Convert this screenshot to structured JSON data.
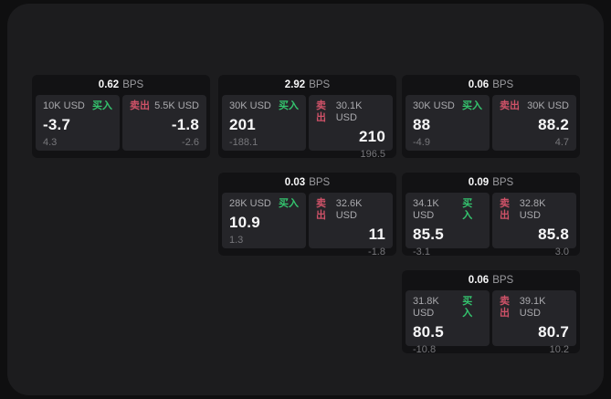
{
  "labels": {
    "bps": "BPS",
    "buy": "买入",
    "sell": "卖出"
  },
  "colors": {
    "background": "#0f0f10",
    "panel": "#1c1c1e",
    "card": "#121214",
    "tile": "#252529",
    "buy_green": "#34c46e",
    "sell_red": "#cf5268",
    "value_white": "#f7f7f8",
    "label_gray": "#a9a9ad",
    "sub_gray": "#77777b"
  },
  "cards": [
    {
      "bps": "0.62",
      "buy": {
        "amount": "10K USD",
        "value": "-3.7",
        "sub": "4.3"
      },
      "sell": {
        "amount": "5.5K USD",
        "value": "-1.8",
        "sub": "-2.6"
      }
    },
    {
      "bps": "2.92",
      "buy": {
        "amount": "30K USD",
        "value": "201",
        "sub": "-188.1"
      },
      "sell": {
        "amount": "30.1K USD",
        "value": "210",
        "sub": "196.5"
      }
    },
    {
      "bps": "0.06",
      "buy": {
        "amount": "30K USD",
        "value": "88",
        "sub": "-4.9"
      },
      "sell": {
        "amount": "30K USD",
        "value": "88.2",
        "sub": "4.7"
      }
    },
    {
      "bps": "0.03",
      "buy": {
        "amount": "28K USD",
        "value": "10.9",
        "sub": "1.3"
      },
      "sell": {
        "amount": "32.6K USD",
        "value": "11",
        "sub": "-1.8"
      }
    },
    {
      "bps": "0.09",
      "buy": {
        "amount": "34.1K USD",
        "value": "85.5",
        "sub": "-3.1"
      },
      "sell": {
        "amount": "32.8K USD",
        "value": "85.8",
        "sub": "3.0"
      }
    },
    {
      "bps": "0.06",
      "buy": {
        "amount": "31.8K USD",
        "value": "80.5",
        "sub": "-10.8"
      },
      "sell": {
        "amount": "39.1K USD",
        "value": "80.7",
        "sub": "10.2"
      }
    }
  ]
}
